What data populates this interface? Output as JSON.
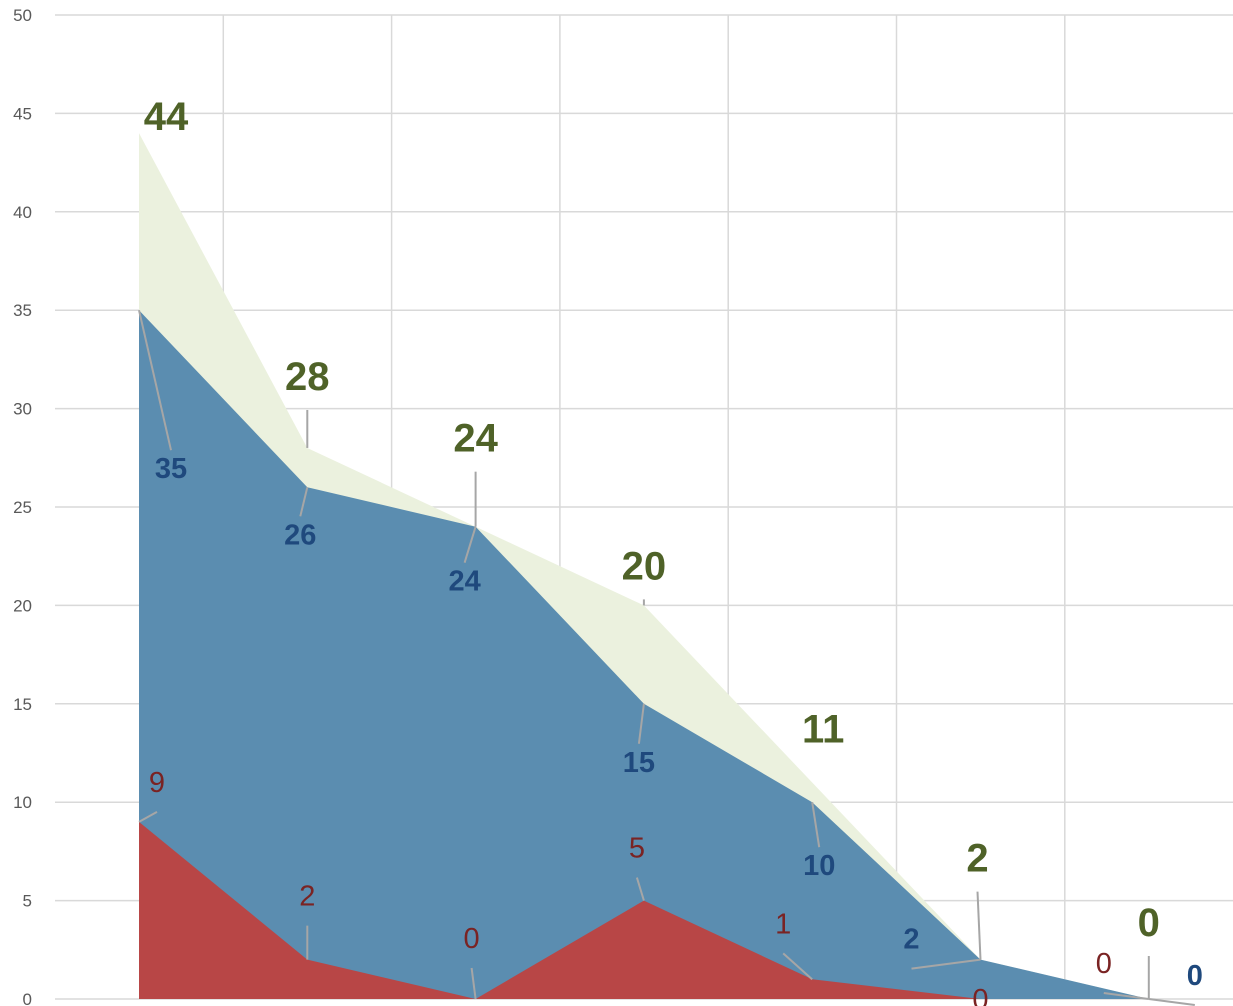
{
  "chart_data": {
    "type": "area",
    "x": [
      1,
      2,
      3,
      4,
      5,
      6,
      7
    ],
    "ylim": [
      0,
      50
    ],
    "yticks": [
      "0",
      "5",
      "10",
      "15",
      "20",
      "25",
      "30",
      "35",
      "40",
      "45",
      "50"
    ],
    "grid": true,
    "series": [
      {
        "values": [
          44,
          28,
          24,
          20,
          11,
          2,
          0
        ],
        "color": "#ebf1de",
        "label_color": "#4f6228"
      },
      {
        "values": [
          35,
          26,
          24,
          15,
          10,
          2,
          0
        ],
        "color": "#5b8db0",
        "label_color": "#1f497d"
      },
      {
        "values": [
          9,
          2,
          0,
          5,
          1,
          0,
          0
        ],
        "color": "#b84646",
        "label_color": "#7a2323"
      }
    ]
  }
}
